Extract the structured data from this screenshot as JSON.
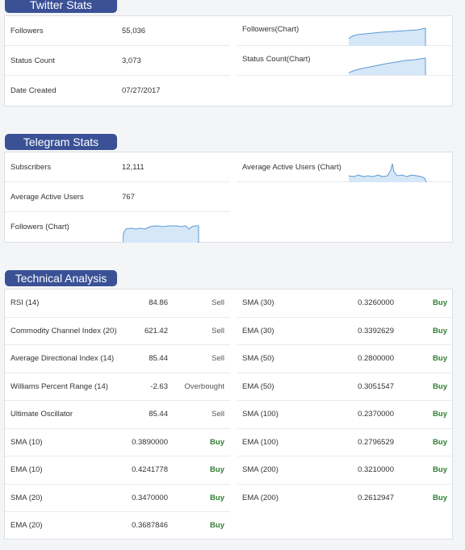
{
  "twitter": {
    "title": "Twitter Stats",
    "followers_label": "Followers",
    "followers_value": "55,036",
    "status_label": "Status Count",
    "status_value": "3,073",
    "created_label": "Date Created",
    "created_value": "07/27/2017",
    "followers_chart_label": "Followers(Chart)",
    "status_chart_label": "Status Count(Chart)"
  },
  "telegram": {
    "title": "Telegram Stats",
    "subscribers_label": "Subscribers",
    "subscribers_value": "12,111",
    "avg_users_label": "Average Active Users",
    "avg_users_value": "767",
    "followers_chart_label": "Followers (Chart)",
    "avg_users_chart_label": "Average Active Users (Chart)"
  },
  "technical": {
    "title": "Technical Analysis",
    "left": [
      {
        "name": "RSI (14)",
        "value": "84.86",
        "action": "Sell"
      },
      {
        "name": "Commodity Channel Index (20)",
        "value": "621.42",
        "action": "Sell"
      },
      {
        "name": "Average Directional Index (14)",
        "value": "85.44",
        "action": "Sell"
      },
      {
        "name": "Williams Percent Range (14)",
        "value": "-2.63",
        "action": "Overbought"
      },
      {
        "name": "Ultimate Oscillator",
        "value": "85.44",
        "action": "Sell"
      },
      {
        "name": "SMA (10)",
        "value": "0.3890000",
        "action": "Buy"
      },
      {
        "name": "EMA (10)",
        "value": "0.4241778",
        "action": "Buy"
      },
      {
        "name": "SMA (20)",
        "value": "0.3470000",
        "action": "Buy"
      },
      {
        "name": "EMA (20)",
        "value": "0.3687846",
        "action": "Buy"
      }
    ],
    "right": [
      {
        "name": "SMA (30)",
        "value": "0.3260000",
        "action": "Buy"
      },
      {
        "name": "EMA (30)",
        "value": "0.3392629",
        "action": "Buy"
      },
      {
        "name": "SMA (50)",
        "value": "0.2800000",
        "action": "Buy"
      },
      {
        "name": "EMA (50)",
        "value": "0.3051547",
        "action": "Buy"
      },
      {
        "name": "SMA (100)",
        "value": "0.2370000",
        "action": "Buy"
      },
      {
        "name": "EMA (100)",
        "value": "0.2796529",
        "action": "Buy"
      },
      {
        "name": "SMA (200)",
        "value": "0.3210000",
        "action": "Buy"
      },
      {
        "name": "EMA (200)",
        "value": "0.2612947",
        "action": "Buy"
      }
    ]
  },
  "colors": {
    "tab": "#3a5196",
    "buy": "#2e7d32",
    "spark_line": "#5b9bd5",
    "spark_fill": "#d6e7f8"
  }
}
